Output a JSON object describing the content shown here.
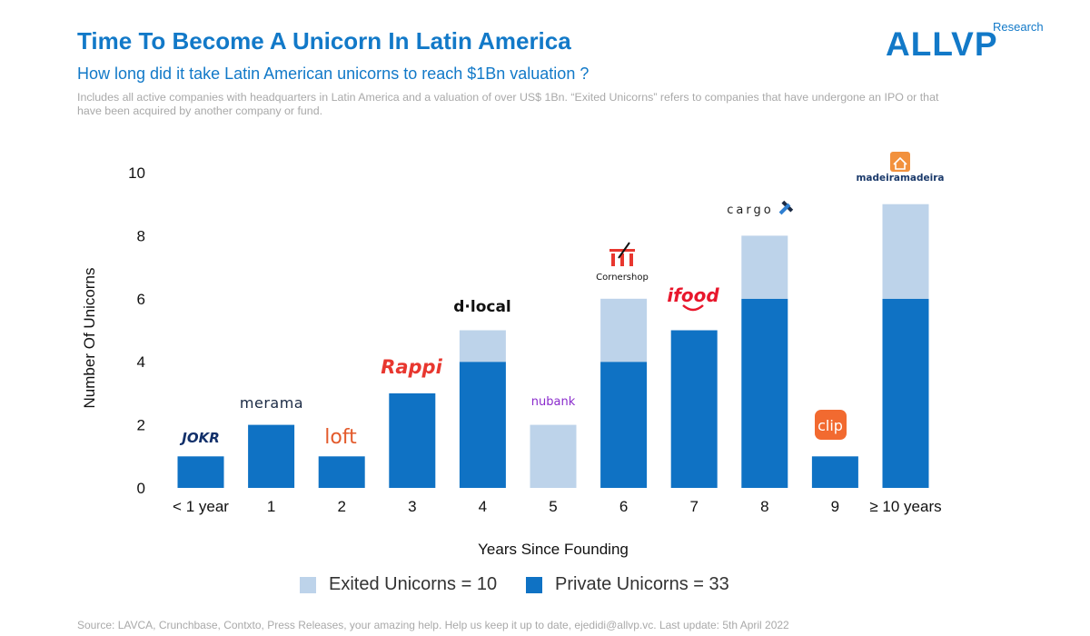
{
  "header": {
    "title": "Time To Become A Unicorn In Latin America",
    "subtitle": "How long did it take Latin American unicorns to reach $1Bn valuation ?",
    "note": "Includes all active companies with headquarters in Latin America and  a valuation of over US$ 1Bn. “Exited Unicorns” refers to companies that have undergone an IPO or that have been acquired by another company or fund."
  },
  "brand": {
    "name": "ALLVP",
    "sub": "Research"
  },
  "footer": {
    "source": "Source: LAVCA, Crunchbase, Contxto,  Press Releases, your amazing help. Help us keep it up to date, ejedidi@allvp.vc. Last update: 5th April  2022"
  },
  "colors": {
    "accent": "#1279c8",
    "private": "#0f72c4",
    "exited": "#bdd3ea"
  },
  "chart_data": {
    "type": "bar",
    "stacked": true,
    "categories": [
      "< 1 year",
      "1",
      "2",
      "3",
      "4",
      "5",
      "6",
      "7",
      "8",
      "9",
      "≥ 10 years"
    ],
    "series": [
      {
        "name": "Private Unicorns = 33",
        "color": "#0f72c4",
        "values": [
          1,
          2,
          1,
          3,
          4,
          0,
          4,
          5,
          6,
          1,
          6
        ]
      },
      {
        "name": "Exited Unicorns = 10",
        "color": "#bdd3ea",
        "values": [
          0,
          0,
          0,
          0,
          1,
          2,
          2,
          0,
          2,
          0,
          3
        ]
      }
    ],
    "xlabel": "Years Since Founding",
    "ylabel": "Number Of Unicorns",
    "ylim": [
      0,
      10
    ],
    "yticks": [
      0,
      2,
      4,
      6,
      8,
      10
    ],
    "grid": false,
    "legend_position": "bottom",
    "annotations": [
      "JOKR",
      "merama",
      "loft",
      "Rappi",
      "d·local",
      "nubank",
      "Cornershop",
      "ifood",
      "cargo",
      "clip",
      "madeiramadeira"
    ]
  }
}
